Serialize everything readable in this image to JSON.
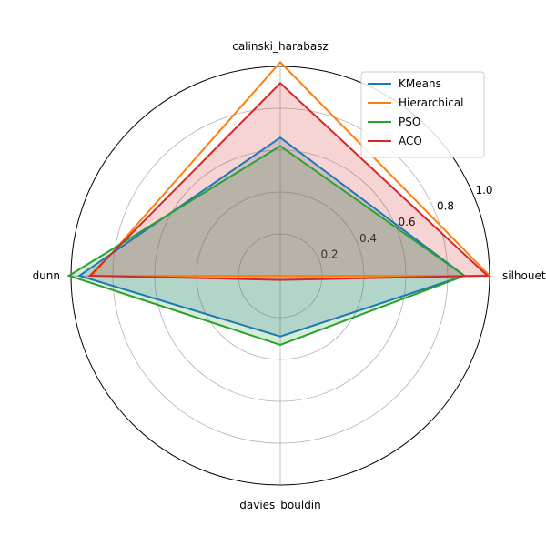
{
  "chart_data": {
    "type": "radar",
    "axes": [
      "silhouette",
      "calinski_harabasz",
      "dunn",
      "davies_bouldin"
    ],
    "rlim": [
      0,
      1.0
    ],
    "rticks": [
      "0.2",
      "0.4",
      "0.6",
      "0.8",
      "1.0"
    ],
    "rtick_values": [
      0.2,
      0.4,
      0.6,
      0.8,
      1.0
    ],
    "legend_position": "top-right",
    "grid": true,
    "series": [
      {
        "name": "KMeans",
        "color": "#1f77b4",
        "values": [
          0.88,
          0.66,
          0.96,
          0.29
        ],
        "fill": true,
        "fill_color": "#1f77b4"
      },
      {
        "name": "Hierarchical",
        "color": "#ff7f0e",
        "values": [
          1.0,
          1.02,
          0.9,
          0.0
        ],
        "fill": false,
        "fill_color": "#ff7f0e"
      },
      {
        "name": "PSO",
        "color": "#2ca02c",
        "values": [
          0.88,
          0.62,
          1.01,
          0.33
        ],
        "fill": true,
        "fill_color": "#2ca02c"
      },
      {
        "name": "ACO",
        "color": "#d62728",
        "values": [
          0.99,
          0.92,
          0.91,
          0.02
        ],
        "fill": true,
        "fill_color": "#d62728"
      }
    ]
  }
}
